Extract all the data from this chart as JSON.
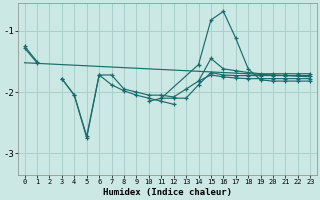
{
  "title": "",
  "xlabel": "Humidex (Indice chaleur)",
  "bg_color": "#cce8e4",
  "grid_color": "#aacfcb",
  "line_color": "#1a6b6b",
  "xlim": [
    -0.5,
    23.5
  ],
  "ylim": [
    -3.35,
    -0.55
  ],
  "yticks": [
    -3,
    -2,
    -1
  ],
  "xticks": [
    0,
    1,
    2,
    3,
    4,
    5,
    6,
    7,
    8,
    9,
    10,
    11,
    12,
    13,
    14,
    15,
    16,
    17,
    18,
    19,
    20,
    21,
    22,
    23
  ],
  "series": [
    {
      "x": [
        0,
        1,
        2,
        3,
        4,
        5,
        6,
        7,
        8,
        9,
        10,
        11,
        14,
        15,
        16,
        17,
        18,
        19,
        20,
        21,
        22,
        23
      ],
      "y": [
        -1.25,
        -1.5,
        null,
        null,
        null,
        null,
        null,
        null,
        null,
        null,
        null,
        -2.1,
        -1.55,
        -0.82,
        -0.68,
        -1.12,
        -1.62,
        -1.8,
        -1.82,
        -1.82,
        -1.82,
        -1.82
      ]
    },
    {
      "x": [
        3,
        4,
        5,
        6,
        7,
        8,
        9,
        10,
        11,
        12
      ],
      "y": [
        -1.78,
        -2.05,
        -2.75,
        -1.72,
        -1.88,
        -1.98,
        -2.05,
        -2.1,
        -2.15,
        -2.2
      ]
    },
    {
      "x": [
        0,
        1
      ],
      "y": [
        -1.28,
        -1.52
      ]
    },
    {
      "x": [
        3,
        4,
        5,
        6,
        7,
        8,
        9,
        10,
        11,
        12,
        13,
        14,
        15,
        16,
        17,
        18,
        19,
        20,
        21,
        22,
        23
      ],
      "y": [
        -1.78,
        -2.05,
        -2.72,
        -1.72,
        -1.72,
        -1.95,
        -2.0,
        -2.05,
        -2.05,
        -2.08,
        -1.95,
        -1.82,
        -1.72,
        -1.75,
        -1.77,
        -1.78,
        -1.78,
        -1.78,
        -1.78,
        -1.78,
        -1.78
      ]
    },
    {
      "x": [
        10,
        11,
        12,
        13,
        14,
        15,
        16,
        17,
        18,
        19,
        20,
        21,
        22,
        23
      ],
      "y": [
        -2.15,
        -2.1,
        -2.1,
        -2.1,
        -1.88,
        -1.68,
        -1.72,
        -1.73,
        -1.73,
        -1.73,
        -1.73,
        -1.73,
        -1.73,
        -1.73
      ]
    },
    {
      "x": [
        14,
        15,
        16,
        17,
        18,
        19,
        20,
        21,
        22,
        23
      ],
      "y": [
        -1.82,
        -1.45,
        -1.62,
        -1.65,
        -1.68,
        -1.7,
        -1.7,
        -1.7,
        -1.7,
        -1.7
      ]
    }
  ],
  "trend_line": {
    "x": [
      0,
      23
    ],
    "y": [
      -1.52,
      -1.75
    ]
  }
}
